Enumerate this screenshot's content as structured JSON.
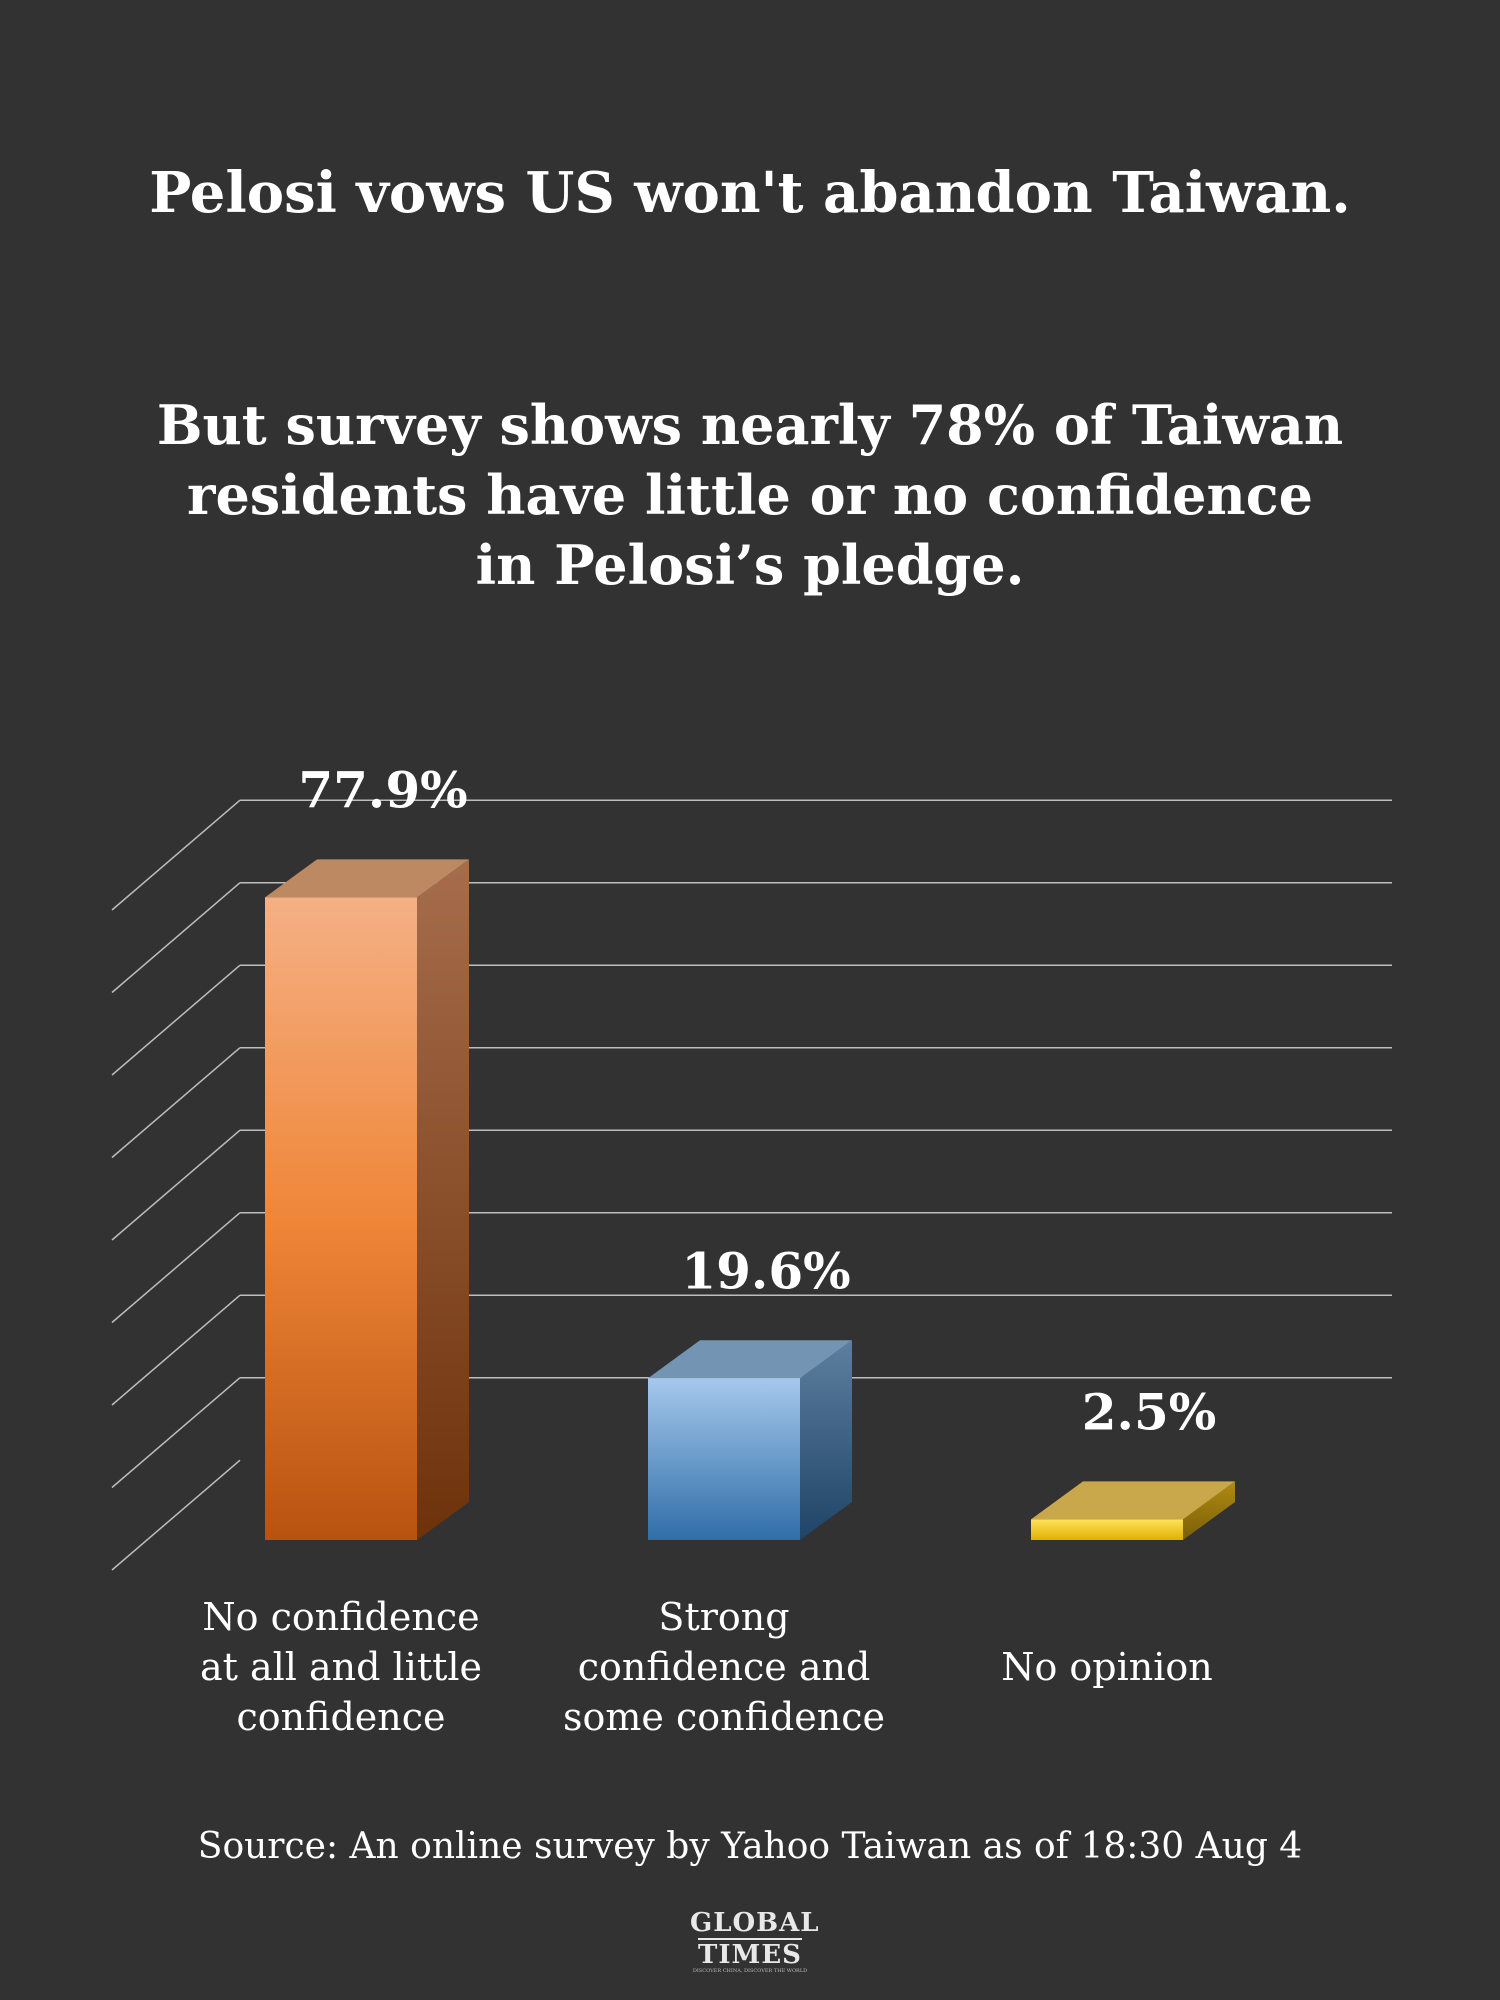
{
  "headline": {
    "title": "Pelosi vows US won't abandon Taiwan.",
    "subtitle": "But survey shows nearly 78% of Taiwan\nresidents have little or no confidence\nin Pelosi’s pledge."
  },
  "chart_data": {
    "type": "bar",
    "categories": [
      "No confidence at all and little confidence",
      "Strong confidence and some confidence",
      "No opinion"
    ],
    "category_lines": [
      [
        "No confidence",
        "at all and little",
        "confidence"
      ],
      [
        "Strong",
        "confidence and",
        "some confidence"
      ],
      [
        "No opinion"
      ]
    ],
    "values": [
      77.9,
      19.6,
      2.5
    ],
    "value_labels": [
      "77.9%",
      "19.6%",
      "2.5%"
    ],
    "ylim": [
      0,
      80
    ],
    "grid": true,
    "colors": [
      "#e8792e",
      "#4a8ccc",
      "#f2c21a"
    ]
  },
  "footer": {
    "source": "Source: An online survey by Yahoo Taiwan as of 18:30 Aug 4",
    "logo_top": "GLOBAL",
    "logo_bottom": "TIMES",
    "logo_tagline": "DISCOVER CHINA, DISCOVER THE WORLD"
  }
}
